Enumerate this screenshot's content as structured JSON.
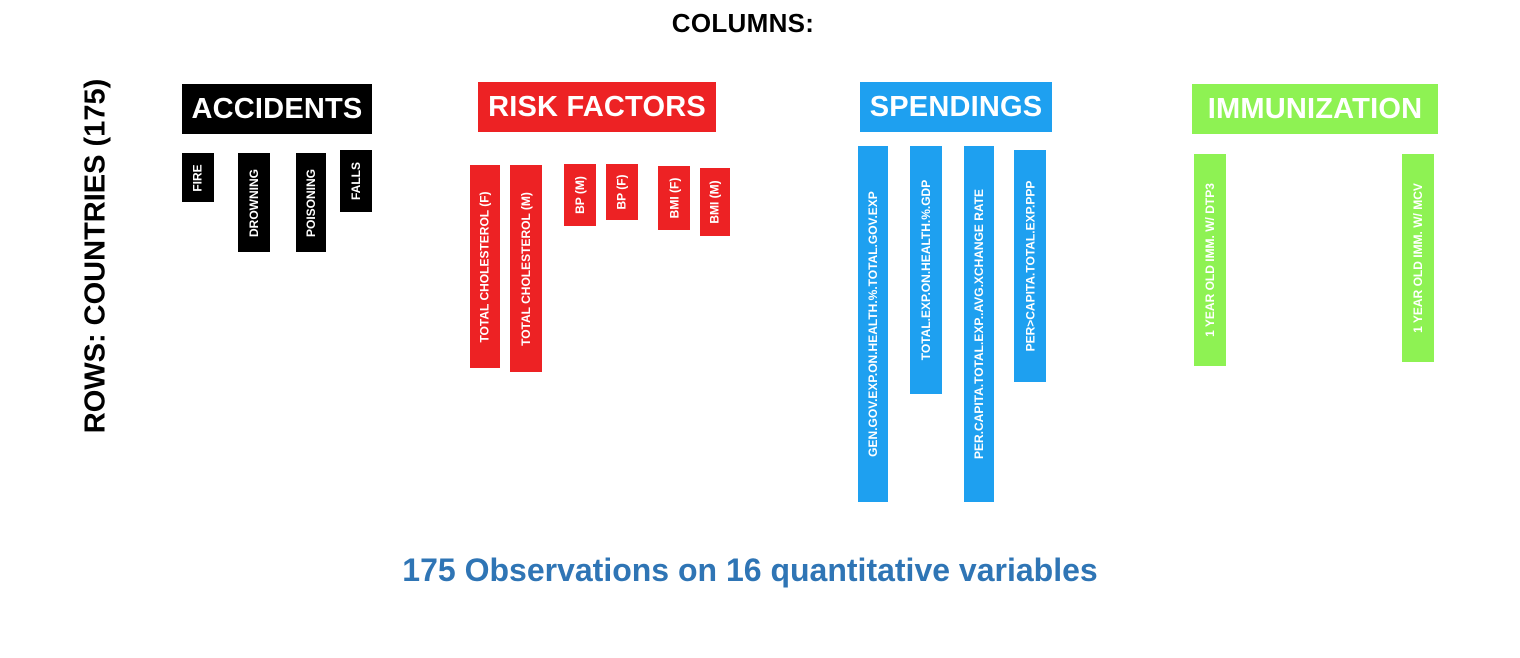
{
  "title": "COLUMNS:",
  "rows_label": "ROWS: COUNTRIES (175)",
  "footer": "175 Observations on 16 quantitative variables",
  "colors": {
    "accidents": "#000000",
    "risk_factors": "#ed2224",
    "spendings": "#1ea0f0",
    "immunization": "#8ef253",
    "footer_text": "#2f75b5"
  },
  "groups": {
    "accidents": {
      "label": "ACCIDENTS",
      "variables": [
        "FIRE",
        "DROWNING",
        "POISONING",
        "FALLS"
      ]
    },
    "risk_factors": {
      "label": "RISK FACTORS",
      "variables": [
        "TOTAL CHOLESTEROL (F)",
        "TOTAL CHOLESTEROL (M)",
        "BP (M)",
        "BP (F)",
        "BMI (F)",
        "BMI (M)"
      ]
    },
    "spendings": {
      "label": "SPENDINGS",
      "variables": [
        "GEN.GOV.EXP.ON.HEALTH.%.TOTAL.GOV.EXP",
        "TOTAL.EXP.ON.HEALTH.%.GDP",
        "PER.CAPITA.TOTAL.EXP..AVG.XCHANGE RATE",
        "PER>CAPITA.TOTAL.EXP.PPP"
      ]
    },
    "immunization": {
      "label": "IMMUNIZATION",
      "variables": [
        "1 YEAR OLD IMM. W/ DTP3",
        "1 YEAR OLD IMM. W/ MCV"
      ]
    }
  }
}
